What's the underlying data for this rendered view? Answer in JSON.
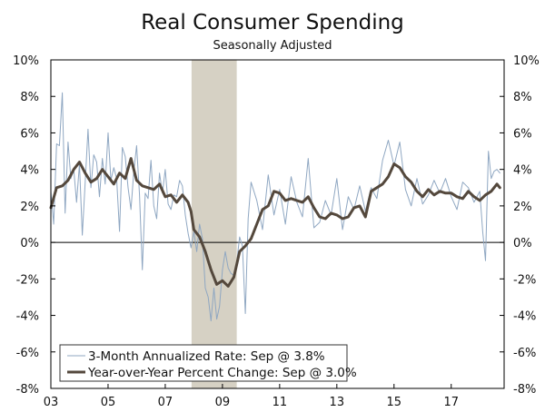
{
  "chart_data": {
    "type": "line",
    "title": "Real Consumer Spending",
    "subtitle": "Seasonally Adjusted",
    "xlabel": "",
    "ylabel": "",
    "xlim": [
      2003.0,
      2018.85
    ],
    "ylim": [
      -8,
      10
    ],
    "x_ticks": [
      {
        "x": 2003,
        "label": "03"
      },
      {
        "x": 2005,
        "label": "05"
      },
      {
        "x": 2007,
        "label": "07"
      },
      {
        "x": 2009,
        "label": "09"
      },
      {
        "x": 2011,
        "label": "11"
      },
      {
        "x": 2013,
        "label": "13"
      },
      {
        "x": 2015,
        "label": "15"
      },
      {
        "x": 2017,
        "label": "17"
      }
    ],
    "y_ticks_left": [
      {
        "v": 10,
        "label": "10%"
      },
      {
        "v": 8,
        "label": "8%"
      },
      {
        "v": 6,
        "label": "6%"
      },
      {
        "v": 4,
        "label": "4%"
      },
      {
        "v": 2,
        "label": "2%"
      },
      {
        "v": 0,
        "label": "0%"
      },
      {
        "v": -2,
        "label": "-2%"
      },
      {
        "v": -4,
        "label": "-4%"
      },
      {
        "v": -6,
        "label": "-6%"
      },
      {
        "v": -8,
        "label": "-8%"
      }
    ],
    "y_ticks_right": [
      {
        "v": 10,
        "label": "10%"
      },
      {
        "v": 8,
        "label": "8%"
      },
      {
        "v": 6,
        "label": "6%"
      },
      {
        "v": 4,
        "label": "4%"
      },
      {
        "v": 2,
        "label": "2%"
      },
      {
        "v": 0,
        "label": "0%"
      },
      {
        "v": -2,
        "label": "-2%"
      },
      {
        "v": -4,
        "label": "-4%"
      },
      {
        "v": -6,
        "label": "-6%"
      },
      {
        "v": -8,
        "label": "-8%"
      }
    ],
    "recession": {
      "start": 2007.92,
      "end": 2009.5,
      "color": "#d6d1c4"
    },
    "legend_position": "bottom-left",
    "series": [
      {
        "name": "3-Month Annualized Rate: Sep @ 3.8%",
        "color": "#8fa7c2",
        "x": [
          2003.0,
          2003.1,
          2003.2,
          2003.3,
          2003.4,
          2003.5,
          2003.6,
          2003.7,
          2003.8,
          2003.9,
          2004.0,
          2004.1,
          2004.2,
          2004.3,
          2004.4,
          2004.5,
          2004.6,
          2004.7,
          2004.8,
          2004.9,
          2005.0,
          2005.1,
          2005.2,
          2005.3,
          2005.4,
          2005.5,
          2005.6,
          2005.7,
          2005.8,
          2005.9,
          2006.0,
          2006.1,
          2006.2,
          2006.3,
          2006.4,
          2006.5,
          2006.6,
          2006.7,
          2006.8,
          2006.9,
          2007.0,
          2007.1,
          2007.2,
          2007.3,
          2007.4,
          2007.5,
          2007.6,
          2007.7,
          2007.8,
          2007.9,
          2008.0,
          2008.1,
          2008.2,
          2008.3,
          2008.4,
          2008.5,
          2008.6,
          2008.7,
          2008.8,
          2008.9,
          2009.0,
          2009.1,
          2009.2,
          2009.3,
          2009.4,
          2009.5,
          2009.6,
          2009.7,
          2009.8,
          2009.9,
          2010.0,
          2010.2,
          2010.4,
          2010.6,
          2010.8,
          2011.0,
          2011.2,
          2011.4,
          2011.6,
          2011.8,
          2012.0,
          2012.2,
          2012.4,
          2012.6,
          2012.8,
          2013.0,
          2013.2,
          2013.4,
          2013.6,
          2013.8,
          2014.0,
          2014.2,
          2014.4,
          2014.6,
          2014.8,
          2015.0,
          2015.2,
          2015.4,
          2015.6,
          2015.8,
          2016.0,
          2016.2,
          2016.4,
          2016.6,
          2016.8,
          2017.0,
          2017.2,
          2017.4,
          2017.6,
          2017.8,
          2018.0,
          2018.1,
          2018.2,
          2018.3,
          2018.4,
          2018.5,
          2018.6,
          2018.7
        ],
        "values": [
          2.8,
          1.0,
          5.4,
          5.3,
          8.2,
          1.6,
          5.5,
          3.5,
          4.0,
          2.2,
          4.3,
          0.4,
          3.3,
          6.2,
          3.0,
          4.8,
          4.4,
          2.5,
          4.6,
          3.2,
          6.0,
          3.4,
          4.1,
          3.5,
          0.6,
          5.2,
          4.7,
          3.0,
          1.8,
          3.9,
          5.3,
          2.6,
          -1.5,
          2.7,
          2.4,
          4.5,
          2.0,
          1.3,
          3.8,
          2.7,
          4.0,
          2.1,
          1.8,
          2.6,
          2.5,
          3.4,
          3.1,
          1.5,
          0.5,
          -0.3,
          0.6,
          -0.5,
          1.0,
          0.2,
          -2.5,
          -3.0,
          -4.3,
          -2.5,
          -4.2,
          -3.5,
          -1.5,
          -0.5,
          -1.4,
          -1.7,
          -1.8,
          -1.1,
          0.3,
          -0.2,
          -3.9,
          1.3,
          3.3,
          2.3,
          0.7,
          3.7,
          1.5,
          2.9,
          1.0,
          3.6,
          2.2,
          1.4,
          4.6,
          0.8,
          1.1,
          2.3,
          1.5,
          3.5,
          0.7,
          2.5,
          1.8,
          3.1,
          1.7,
          3.0,
          2.4,
          4.5,
          5.6,
          4.2,
          5.5,
          2.9,
          2.0,
          3.5,
          2.1,
          2.6,
          3.4,
          2.7,
          3.5,
          2.5,
          1.8,
          3.3,
          3.0,
          2.2,
          2.8,
          0.6,
          -1.0,
          5.0,
          3.5,
          3.9,
          4.0,
          3.8
        ]
      },
      {
        "name": "Year-over-Year Percent Change: Sep @ 3.0%",
        "color": "#54483c",
        "x": [
          2003.0,
          2003.2,
          2003.4,
          2003.6,
          2003.8,
          2004.0,
          2004.2,
          2004.4,
          2004.6,
          2004.8,
          2005.0,
          2005.2,
          2005.4,
          2005.6,
          2005.8,
          2006.0,
          2006.2,
          2006.4,
          2006.6,
          2006.8,
          2007.0,
          2007.2,
          2007.4,
          2007.6,
          2007.8,
          2007.9,
          2008.0,
          2008.2,
          2008.4,
          2008.6,
          2008.8,
          2009.0,
          2009.2,
          2009.4,
          2009.6,
          2009.8,
          2010.0,
          2010.2,
          2010.4,
          2010.6,
          2010.8,
          2011.0,
          2011.2,
          2011.4,
          2011.6,
          2011.8,
          2012.0,
          2012.2,
          2012.4,
          2012.6,
          2012.8,
          2013.0,
          2013.2,
          2013.4,
          2013.6,
          2013.8,
          2014.0,
          2014.2,
          2014.4,
          2014.6,
          2014.8,
          2015.0,
          2015.2,
          2015.4,
          2015.6,
          2015.8,
          2016.0,
          2016.2,
          2016.4,
          2016.6,
          2016.8,
          2017.0,
          2017.2,
          2017.4,
          2017.6,
          2017.8,
          2018.0,
          2018.2,
          2018.4,
          2018.6,
          2018.7
        ],
        "values": [
          1.9,
          3.0,
          3.1,
          3.4,
          4.0,
          4.4,
          3.8,
          3.3,
          3.5,
          4.0,
          3.6,
          3.2,
          3.8,
          3.5,
          4.6,
          3.4,
          3.1,
          3.0,
          2.9,
          3.2,
          2.5,
          2.6,
          2.2,
          2.6,
          2.2,
          1.7,
          0.7,
          0.3,
          -0.5,
          -1.5,
          -2.3,
          -2.1,
          -2.4,
          -1.9,
          -0.5,
          -0.2,
          0.2,
          1.0,
          1.8,
          2.0,
          2.8,
          2.7,
          2.3,
          2.4,
          2.3,
          2.2,
          2.5,
          1.9,
          1.4,
          1.3,
          1.6,
          1.5,
          1.3,
          1.4,
          1.9,
          2.0,
          1.4,
          2.8,
          3.0,
          3.2,
          3.6,
          4.3,
          4.1,
          3.6,
          3.3,
          2.8,
          2.5,
          2.9,
          2.6,
          2.8,
          2.7,
          2.7,
          2.5,
          2.4,
          2.8,
          2.5,
          2.3,
          2.6,
          2.8,
          3.2,
          3.0
        ]
      }
    ]
  }
}
